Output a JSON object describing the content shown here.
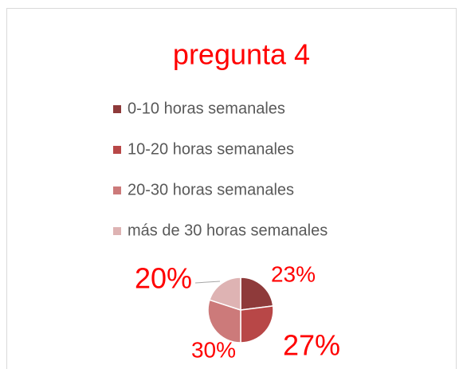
{
  "chart_data": {
    "type": "pie",
    "title": "pregunta 4",
    "categories": [
      "0-10 horas semanales",
      "10-20 horas semanales",
      "20-30 horas semanales",
      "más de 30 horas semanales"
    ],
    "values": [
      23,
      27,
      30,
      20
    ],
    "value_labels": [
      "23%",
      "27%",
      "30%",
      "20%"
    ],
    "colors": [
      "#8e3a3a",
      "#b84747",
      "#cc7a7a",
      "#deb3b3"
    ],
    "legend": "top"
  }
}
